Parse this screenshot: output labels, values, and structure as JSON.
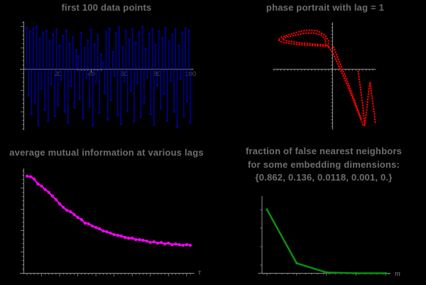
{
  "app": {
    "background": "#000000",
    "description": "2x2 grid of nonlinear time-series analysis plots"
  },
  "colors": {
    "axis": "#8f8f8f",
    "tick": "#7d7d7d",
    "title_text": "#6e6e6e",
    "tick_label": "#4f4f4f",
    "axis_label": "#7a7a7a",
    "stem_blue": "#0000A3",
    "phase_red": "#FF0000",
    "ami_magenta": "#FF00FF",
    "fnn_green": "#0A960A"
  },
  "chart_data": [
    {
      "id": "first100",
      "type": "bar",
      "style": "stem",
      "title": "first 100 data points",
      "x_start": 1,
      "x_end": 100,
      "xticks": [
        20,
        40,
        60,
        80,
        100
      ],
      "xtick_labels": [
        "20",
        "40",
        "60",
        "80",
        "100"
      ],
      "ylim": [
        -1.45,
        1.05
      ],
      "color": "#0000A3",
      "values": [
        0.97,
        -0.62,
        0.88,
        -1.05,
        0.95,
        -0.78,
        1.0,
        -1.3,
        0.72,
        -0.45,
        0.86,
        -0.95,
        0.9,
        -1.2,
        0.66,
        -0.35,
        0.82,
        -1.1,
        0.93,
        -0.85,
        0.55,
        -0.25,
        0.78,
        -1.0,
        0.91,
        -1.25,
        0.6,
        -0.4,
        0.75,
        -0.9,
        0.45,
        0.3,
        -0.7,
        0.85,
        -1.15,
        0.5,
        -0.2,
        0.68,
        -0.88,
        0.92,
        -1.32,
        0.58,
        -0.3,
        0.8,
        -1.02,
        0.35,
        0.15,
        -0.55,
        0.88,
        -1.18,
        0.96,
        -0.72,
        0.4,
        -0.15,
        0.84,
        -1.08,
        0.98,
        -1.28,
        0.52,
        -0.28,
        0.9,
        -0.98,
        0.7,
        -0.5,
        0.94,
        -1.22,
        0.62,
        -0.33,
        0.87,
        -1.12,
        0.99,
        -0.8,
        0.48,
        -0.18,
        0.83,
        -1.05,
        0.95,
        -1.3,
        0.57,
        -0.38,
        0.89,
        -0.92,
        0.73,
        -0.58,
        0.97,
        -1.2,
        0.65,
        -0.27,
        0.81,
        -1.0,
        0.93,
        -1.35,
        0.55,
        -0.22,
        0.86,
        -1.1,
        0.96,
        -0.75,
        0.9,
        -1.25
      ]
    },
    {
      "id": "phase_portrait",
      "type": "line",
      "style": "dotted",
      "title_prefix": "phase portrait with lag = ",
      "lag": "1",
      "xlim": [
        -1.4,
        1.02
      ],
      "ylim": [
        -1.42,
        1.09
      ],
      "color": "#FF0000",
      "segments": [
        [
          [
            -0.1,
            0.53
          ],
          [
            -0.35,
            0.55
          ],
          [
            -0.7,
            0.57
          ],
          [
            -1.0,
            0.6
          ],
          [
            -1.2,
            0.64
          ],
          [
            -1.28,
            0.69
          ],
          [
            -1.2,
            0.75
          ],
          [
            -1.0,
            0.82
          ],
          [
            -0.75,
            0.89
          ],
          [
            -0.55,
            0.92
          ],
          [
            -0.35,
            0.9
          ],
          [
            -0.18,
            0.8
          ],
          [
            -0.1,
            0.67
          ],
          [
            -0.1,
            0.53
          ]
        ],
        [
          [
            -0.16,
            0.57
          ],
          [
            -0.45,
            0.59
          ],
          [
            -0.78,
            0.62
          ],
          [
            -1.05,
            0.66
          ],
          [
            -1.18,
            0.7
          ],
          [
            -1.12,
            0.74
          ],
          [
            -0.92,
            0.79
          ],
          [
            -0.68,
            0.84
          ],
          [
            -0.47,
            0.85
          ],
          [
            -0.28,
            0.81
          ],
          [
            -0.18,
            0.72
          ],
          [
            -0.16,
            0.57
          ]
        ],
        [
          [
            -0.12,
            0.56
          ],
          [
            -0.02,
            0.42
          ],
          [
            0.06,
            0.26
          ],
          [
            0.15,
            0.06
          ],
          [
            0.26,
            -0.18
          ],
          [
            0.38,
            -0.46
          ],
          [
            0.5,
            -0.76
          ],
          [
            0.6,
            -1.02
          ],
          [
            0.68,
            -1.22
          ],
          [
            0.72,
            -1.34
          ]
        ],
        [
          [
            0.02,
            0.52
          ],
          [
            0.1,
            0.32
          ],
          [
            0.18,
            0.12
          ],
          [
            0.28,
            -0.12
          ],
          [
            0.41,
            -0.45
          ],
          [
            0.52,
            -0.75
          ],
          [
            0.6,
            -0.98
          ],
          [
            0.67,
            -1.16
          ]
        ],
        [
          [
            0.6,
            -0.05
          ],
          [
            0.66,
            -0.5
          ],
          [
            0.72,
            -0.95
          ],
          [
            0.75,
            -1.33
          ],
          [
            0.8,
            -0.95
          ],
          [
            0.85,
            -0.48
          ],
          [
            0.88,
            -0.3
          ],
          [
            0.93,
            -0.7
          ],
          [
            0.98,
            -1.05
          ],
          [
            1.0,
            -1.28
          ]
        ]
      ]
    },
    {
      "id": "ami",
      "type": "line",
      "markers": true,
      "title": "average mutual information at various lags",
      "xlabel": "τ",
      "x_start": 1,
      "color": "#FF00FF",
      "values": [
        0.99,
        0.985,
        0.96,
        0.91,
        0.89,
        0.854,
        0.825,
        0.788,
        0.752,
        0.708,
        0.672,
        0.642,
        0.628,
        0.599,
        0.569,
        0.547,
        0.511,
        0.504,
        0.482,
        0.467,
        0.453,
        0.431,
        0.423,
        0.409,
        0.394,
        0.387,
        0.38,
        0.365,
        0.358,
        0.358,
        0.343,
        0.343,
        0.336,
        0.328,
        0.314,
        0.321,
        0.307,
        0.314,
        0.299,
        0.307,
        0.292,
        0.299,
        0.292,
        0.285,
        0.292,
        0.285
      ]
    },
    {
      "id": "fnn",
      "type": "line",
      "markers": true,
      "title_line1": "fraction of false nearest neighbors",
      "title_line2": "for some embedding dimensions:",
      "title_line3": "{0.862, 0.136, 0.0118, 0.001, 0.}",
      "xlabel": "m",
      "x": [
        1,
        2,
        3,
        4,
        5
      ],
      "values": [
        0.862,
        0.136,
        0.0118,
        0.001,
        0.0
      ],
      "color": "#0A960A"
    }
  ]
}
